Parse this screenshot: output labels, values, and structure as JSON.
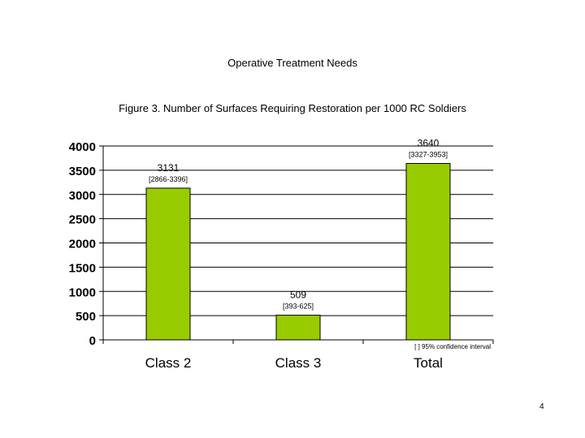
{
  "page": {
    "title": "Operative Treatment Needs",
    "figure_title": "Figure 3.  Number of Surfaces Requiring Restoration per 1000 RC Soldiers",
    "page_number": "4"
  },
  "chart_data": {
    "type": "bar",
    "categories": [
      "Class 2",
      "Class 3",
      "Total"
    ],
    "values": [
      3131,
      509,
      3640
    ],
    "data_labels": [
      "3131",
      "509",
      "3640"
    ],
    "confidence_intervals": [
      "[2866-3396]",
      "[393-625]",
      "[3327-3953]"
    ],
    "yticks": [
      "0",
      "500",
      "1000",
      "1500",
      "2000",
      "2500",
      "3000",
      "3500",
      "4000"
    ],
    "ylim": [
      0,
      4000
    ],
    "xlabel": "",
    "ylabel": "",
    "grid": true,
    "legend_note": "[  ] 95% confidence interval",
    "bar_color": "#99cc00"
  }
}
